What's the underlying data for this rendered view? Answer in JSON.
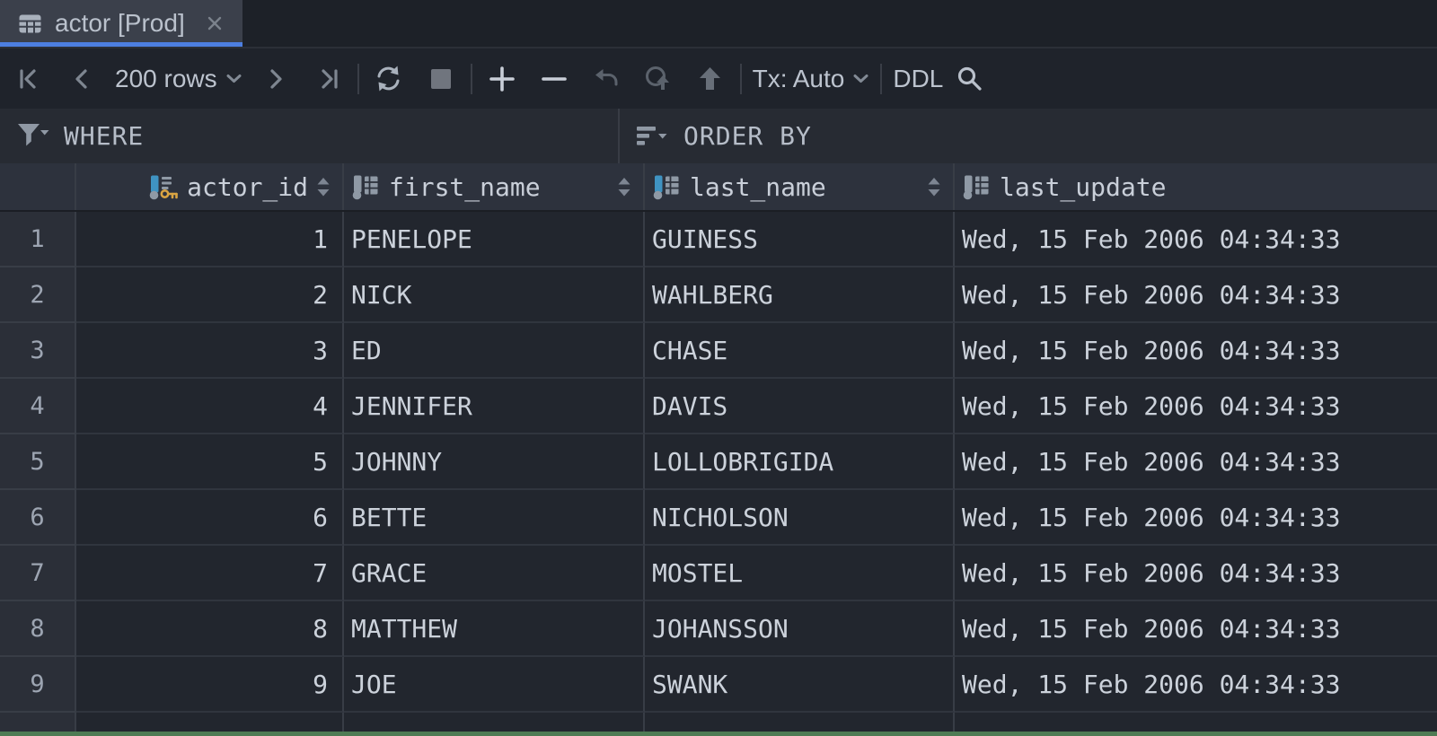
{
  "tab": {
    "title": "actor [Prod]"
  },
  "toolbar": {
    "page_size_label": "200 rows",
    "tx_label": "Tx: Auto",
    "ddl_label": "DDL"
  },
  "filter": {
    "where_label": "WHERE",
    "order_by_label": "ORDER BY"
  },
  "table": {
    "columns": [
      {
        "name": "actor_id",
        "icon": "primary-key-column-icon",
        "indexed": true,
        "sortable": true
      },
      {
        "name": "first_name",
        "icon": "column-icon",
        "indexed": false,
        "sortable": true
      },
      {
        "name": "last_name",
        "icon": "indexed-column-icon",
        "indexed": true,
        "sortable": true
      },
      {
        "name": "last_update",
        "icon": "column-icon",
        "indexed": false,
        "sortable": false
      }
    ],
    "rows": [
      {
        "num": "1",
        "actor_id": "1",
        "first_name": "PENELOPE",
        "last_name": "GUINESS",
        "last_update": "Wed, 15 Feb 2006 04:34:33"
      },
      {
        "num": "2",
        "actor_id": "2",
        "first_name": "NICK",
        "last_name": "WAHLBERG",
        "last_update": "Wed, 15 Feb 2006 04:34:33"
      },
      {
        "num": "3",
        "actor_id": "3",
        "first_name": "ED",
        "last_name": "CHASE",
        "last_update": "Wed, 15 Feb 2006 04:34:33"
      },
      {
        "num": "4",
        "actor_id": "4",
        "first_name": "JENNIFER",
        "last_name": "DAVIS",
        "last_update": "Wed, 15 Feb 2006 04:34:33"
      },
      {
        "num": "5",
        "actor_id": "5",
        "first_name": "JOHNNY",
        "last_name": "LOLLOBRIGIDA",
        "last_update": "Wed, 15 Feb 2006 04:34:33"
      },
      {
        "num": "6",
        "actor_id": "6",
        "first_name": "BETTE",
        "last_name": "NICHOLSON",
        "last_update": "Wed, 15 Feb 2006 04:34:33"
      },
      {
        "num": "7",
        "actor_id": "7",
        "first_name": "GRACE",
        "last_name": "MOSTEL",
        "last_update": "Wed, 15 Feb 2006 04:34:33"
      },
      {
        "num": "8",
        "actor_id": "8",
        "first_name": "MATTHEW",
        "last_name": "JOHANSSON",
        "last_update": "Wed, 15 Feb 2006 04:34:33"
      },
      {
        "num": "9",
        "actor_id": "9",
        "first_name": "JOE",
        "last_name": "SWANK",
        "last_update": "Wed, 15 Feb 2006 04:34:33"
      }
    ]
  },
  "colors": {
    "tab_accent_blue": "#4d7fe0",
    "primary_key_gold": "#d9a443",
    "indexed_column_blue": "#3f93c2",
    "bottom_progress_green": "#4e7b54"
  }
}
